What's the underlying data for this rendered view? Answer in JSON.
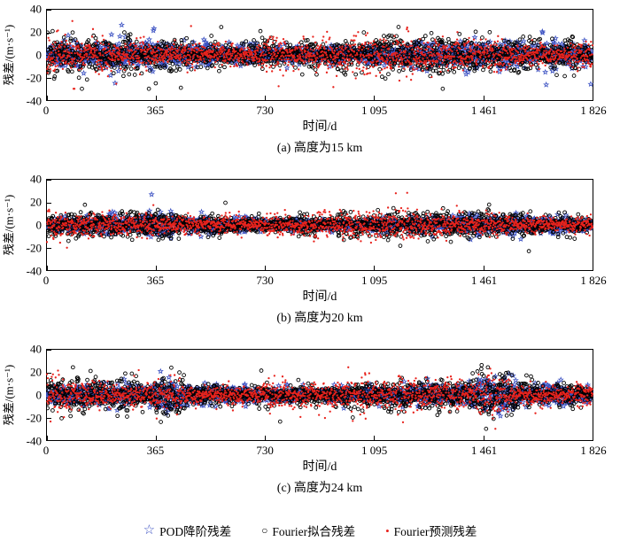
{
  "figure": {
    "background": "#ffffff"
  },
  "legend": {
    "items": [
      {
        "glyph": "☆",
        "label": "POD降阶残差",
        "color": "#3a50c2",
        "marker": "star"
      },
      {
        "glyph": "○",
        "label": "Fourier拟合残差",
        "color": "#000000",
        "marker": "circle"
      },
      {
        "glyph": "•",
        "label": "Fourier预测残差",
        "color": "#e8231d",
        "marker": "dot"
      }
    ]
  },
  "chart_data": [
    {
      "type": "scatter",
      "caption": "(a) 高度为15 km",
      "xlabel": "时间/d",
      "ylabel": "残差/(m·s⁻¹)",
      "xlim": [
        0,
        1826
      ],
      "ylim": [
        -40,
        40
      ],
      "xticks": [
        0,
        365,
        730,
        1095,
        1461,
        1826
      ],
      "xtick_labels": [
        "0",
        "365",
        "730",
        "1 095",
        "1 461",
        "1 826"
      ],
      "yticks": [
        -40,
        -20,
        0,
        20,
        40
      ],
      "ytick_labels": [
        "-40",
        "-20",
        "0",
        "20",
        "40"
      ],
      "grid": false,
      "representation": "seeded-noise",
      "noise": {
        "spike_prob": 0.02,
        "spike_scale": 2.4,
        "bursts": [],
        "burst_gain": 1
      },
      "series": [
        {
          "name": "POD降阶残差",
          "marker": "star",
          "color": "#3a50c2",
          "std": 4.5,
          "n": 1826
        },
        {
          "name": "Fourier拟合残差",
          "marker": "circle",
          "color": "#000000",
          "std": 6.5,
          "n": 1826
        },
        {
          "name": "Fourier预测残差",
          "marker": "dot",
          "color": "#e8231d",
          "std": 6.5,
          "n": 1826
        }
      ]
    },
    {
      "type": "scatter",
      "caption": "(b) 高度为20 km",
      "xlabel": "时间/d",
      "ylabel": "残差/(m·s⁻¹)",
      "xlim": [
        0,
        1826
      ],
      "ylim": [
        -40,
        40
      ],
      "xticks": [
        0,
        365,
        730,
        1095,
        1461,
        1826
      ],
      "xtick_labels": [
        "0",
        "365",
        "730",
        "1 095",
        "1 461",
        "1 826"
      ],
      "yticks": [
        -40,
        -20,
        0,
        20,
        40
      ],
      "ytick_labels": [
        "-40",
        "-20",
        "0",
        "20",
        "40"
      ],
      "grid": false,
      "representation": "seeded-noise",
      "noise": {
        "spike_prob": 0.012,
        "spike_scale": 1.9,
        "bursts": [
          [
            330,
            420
          ]
        ],
        "burst_gain": 1.4
      },
      "series": [
        {
          "name": "POD降阶残差",
          "marker": "star",
          "color": "#3a50c2",
          "std": 3.2,
          "n": 1826
        },
        {
          "name": "Fourier拟合残差",
          "marker": "circle",
          "color": "#000000",
          "std": 4.6,
          "n": 1826
        },
        {
          "name": "Fourier预测残差",
          "marker": "dot",
          "color": "#e8231d",
          "std": 4.8,
          "n": 1826
        }
      ]
    },
    {
      "type": "scatter",
      "caption": "(c) 高度为24 km",
      "xlabel": "时间/d",
      "ylabel": "残差/(m·s⁻¹)",
      "xlim": [
        0,
        1826
      ],
      "ylim": [
        -40,
        40
      ],
      "xticks": [
        0,
        365,
        730,
        1095,
        1461,
        1826
      ],
      "xtick_labels": [
        "0",
        "365",
        "730",
        "1 095",
        "1 461",
        "1 826"
      ],
      "yticks": [
        -40,
        -20,
        0,
        20,
        40
      ],
      "ytick_labels": [
        "-40",
        "-20",
        "0",
        "20",
        "40"
      ],
      "grid": false,
      "representation": "seeded-noise",
      "noise": {
        "spike_prob": 0.015,
        "spike_scale": 2.1,
        "bursts": [
          [
            360,
            450
          ],
          [
            1440,
            1560
          ]
        ],
        "burst_gain": 1.7
      },
      "series": [
        {
          "name": "POD降阶残差",
          "marker": "star",
          "color": "#3a50c2",
          "std": 3.8,
          "n": 1826
        },
        {
          "name": "Fourier拟合残差",
          "marker": "circle",
          "color": "#000000",
          "std": 5.4,
          "n": 1826
        },
        {
          "name": "Fourier预测残差",
          "marker": "dot",
          "color": "#e8231d",
          "std": 5.6,
          "n": 1826
        }
      ]
    }
  ]
}
